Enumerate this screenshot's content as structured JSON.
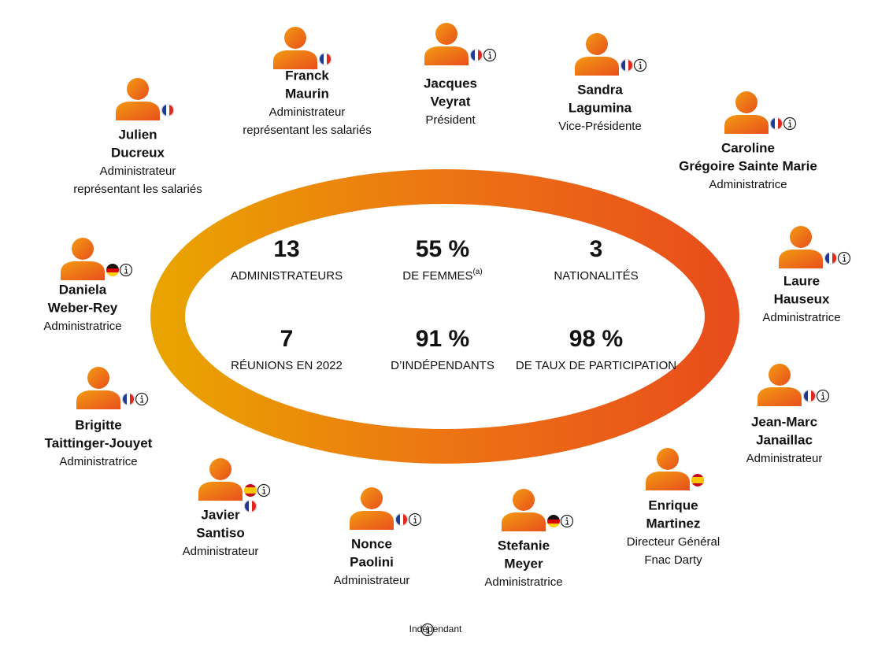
{
  "members": [
    {
      "name": [
        "Julien",
        "Ducreux"
      ],
      "role": [
        "Administrateur",
        "représentant les salariés"
      ]
    },
    {
      "name": [
        "Franck",
        "Maurin"
      ],
      "role": [
        "Administrateur",
        "représentant les salariés"
      ]
    },
    {
      "name": [
        "Jacques",
        "Veyrat"
      ],
      "role": [
        "Président"
      ]
    },
    {
      "name": [
        "Sandra",
        "Lagumina"
      ],
      "role": [
        "Vice-Présidente"
      ]
    },
    {
      "name": [
        "Caroline",
        "Grégoire Sainte Marie"
      ],
      "role": [
        "Administratrice"
      ]
    },
    {
      "name": [
        "Laure",
        "Hauseux"
      ],
      "role": [
        "Administratrice"
      ]
    },
    {
      "name": [
        "Daniela",
        "Weber-Rey"
      ],
      "role": [
        "Administratrice"
      ]
    },
    {
      "name": [
        "Brigitte",
        "Taittinger-Jouyet"
      ],
      "role": [
        "Administratrice"
      ]
    },
    {
      "name": [
        "Jean-Marc",
        "Janaillac"
      ],
      "role": [
        "Administrateur"
      ]
    },
    {
      "name": [
        "Javier",
        "Santiso"
      ],
      "role": [
        "Administrateur"
      ]
    },
    {
      "name": [
        "Enrique",
        "Martinez"
      ],
      "role": [
        "Directeur Général",
        "Fnac Darty"
      ]
    },
    {
      "name": [
        "Nonce",
        "Paolini"
      ],
      "role": [
        "Administrateur"
      ]
    },
    {
      "name": [
        "Stefanie",
        "Meyer"
      ],
      "role": [
        "Administratrice"
      ]
    }
  ],
  "stats": [
    {
      "value": "13",
      "label": "ADMINISTRATEURS"
    },
    {
      "value": "55 %",
      "label": "DE FEMMES",
      "note": "(a)"
    },
    {
      "value": "3",
      "label": "NATIONALITÉS"
    },
    {
      "value": "7",
      "label": "RÉUNIONS EN 2022"
    },
    {
      "value": "91 %",
      "label": "D’INDÉPENDANTS"
    },
    {
      "value": "98 %",
      "label": "DE TAUX DE PARTICIPATION"
    }
  ],
  "legend": "Indépendant"
}
